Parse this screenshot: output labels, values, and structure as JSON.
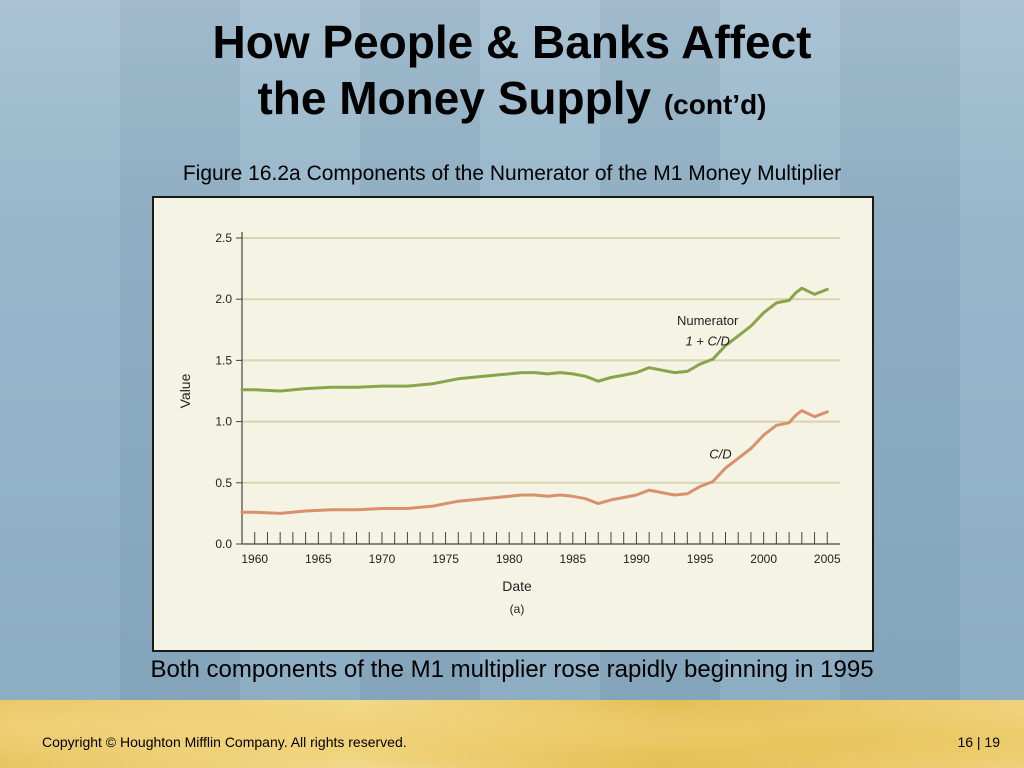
{
  "slide": {
    "title_line1": "How People & Banks Affect",
    "title_line2": "the Money Supply",
    "title_suffix": "(cont’d)",
    "figure_title": "Figure 16.2a Components of the Numerator of the M1 Money Multiplier",
    "caption": "Both components of the M1 multiplier rose rapidly beginning in 1995",
    "footer_copyright": "Copyright © Houghton Mifflin Company.  All rights reserved.",
    "page_number": "16 | 19"
  },
  "chart_data": {
    "type": "line",
    "xlabel": "Date",
    "ylabel": "Value",
    "panel_label": "(a)",
    "xlim": [
      1959,
      2006
    ],
    "ylim": [
      0,
      2.5
    ],
    "x_ticks": [
      1960,
      1965,
      1970,
      1975,
      1980,
      1985,
      1990,
      1995,
      2000,
      2005
    ],
    "y_ticks": [
      "0.0",
      "0.5",
      "1.0",
      "1.5",
      "2.0",
      "2.5"
    ],
    "grid": "horizontal",
    "x": [
      1959,
      1960,
      1962,
      1964,
      1966,
      1968,
      1970,
      1972,
      1974,
      1976,
      1978,
      1980,
      1981,
      1982,
      1983,
      1984,
      1985,
      1986,
      1987,
      1988,
      1989,
      1990,
      1991,
      1992,
      1993,
      1994,
      1995,
      1996,
      1997,
      1998,
      1999,
      2000,
      2001,
      2002,
      2002.5,
      2003,
      2004,
      2005
    ],
    "series": [
      {
        "name": "Numerator",
        "name_line2": "1 + C/D",
        "color": "#8aa44a",
        "values": [
          1.26,
          1.26,
          1.25,
          1.27,
          1.28,
          1.28,
          1.29,
          1.29,
          1.31,
          1.35,
          1.37,
          1.39,
          1.4,
          1.4,
          1.39,
          1.4,
          1.39,
          1.37,
          1.33,
          1.36,
          1.38,
          1.4,
          1.44,
          1.42,
          1.4,
          1.41,
          1.47,
          1.51,
          1.62,
          1.7,
          1.78,
          1.89,
          1.97,
          1.99,
          2.05,
          2.09,
          2.04,
          2.08
        ]
      },
      {
        "name": "C/D",
        "color": "#d8916c",
        "values": [
          0.26,
          0.26,
          0.25,
          0.27,
          0.28,
          0.28,
          0.29,
          0.29,
          0.31,
          0.35,
          0.37,
          0.39,
          0.4,
          0.4,
          0.39,
          0.4,
          0.39,
          0.37,
          0.33,
          0.36,
          0.38,
          0.4,
          0.44,
          0.42,
          0.4,
          0.41,
          0.47,
          0.51,
          0.62,
          0.7,
          0.78,
          0.89,
          0.97,
          0.99,
          1.05,
          1.09,
          1.04,
          1.08
        ]
      }
    ]
  }
}
